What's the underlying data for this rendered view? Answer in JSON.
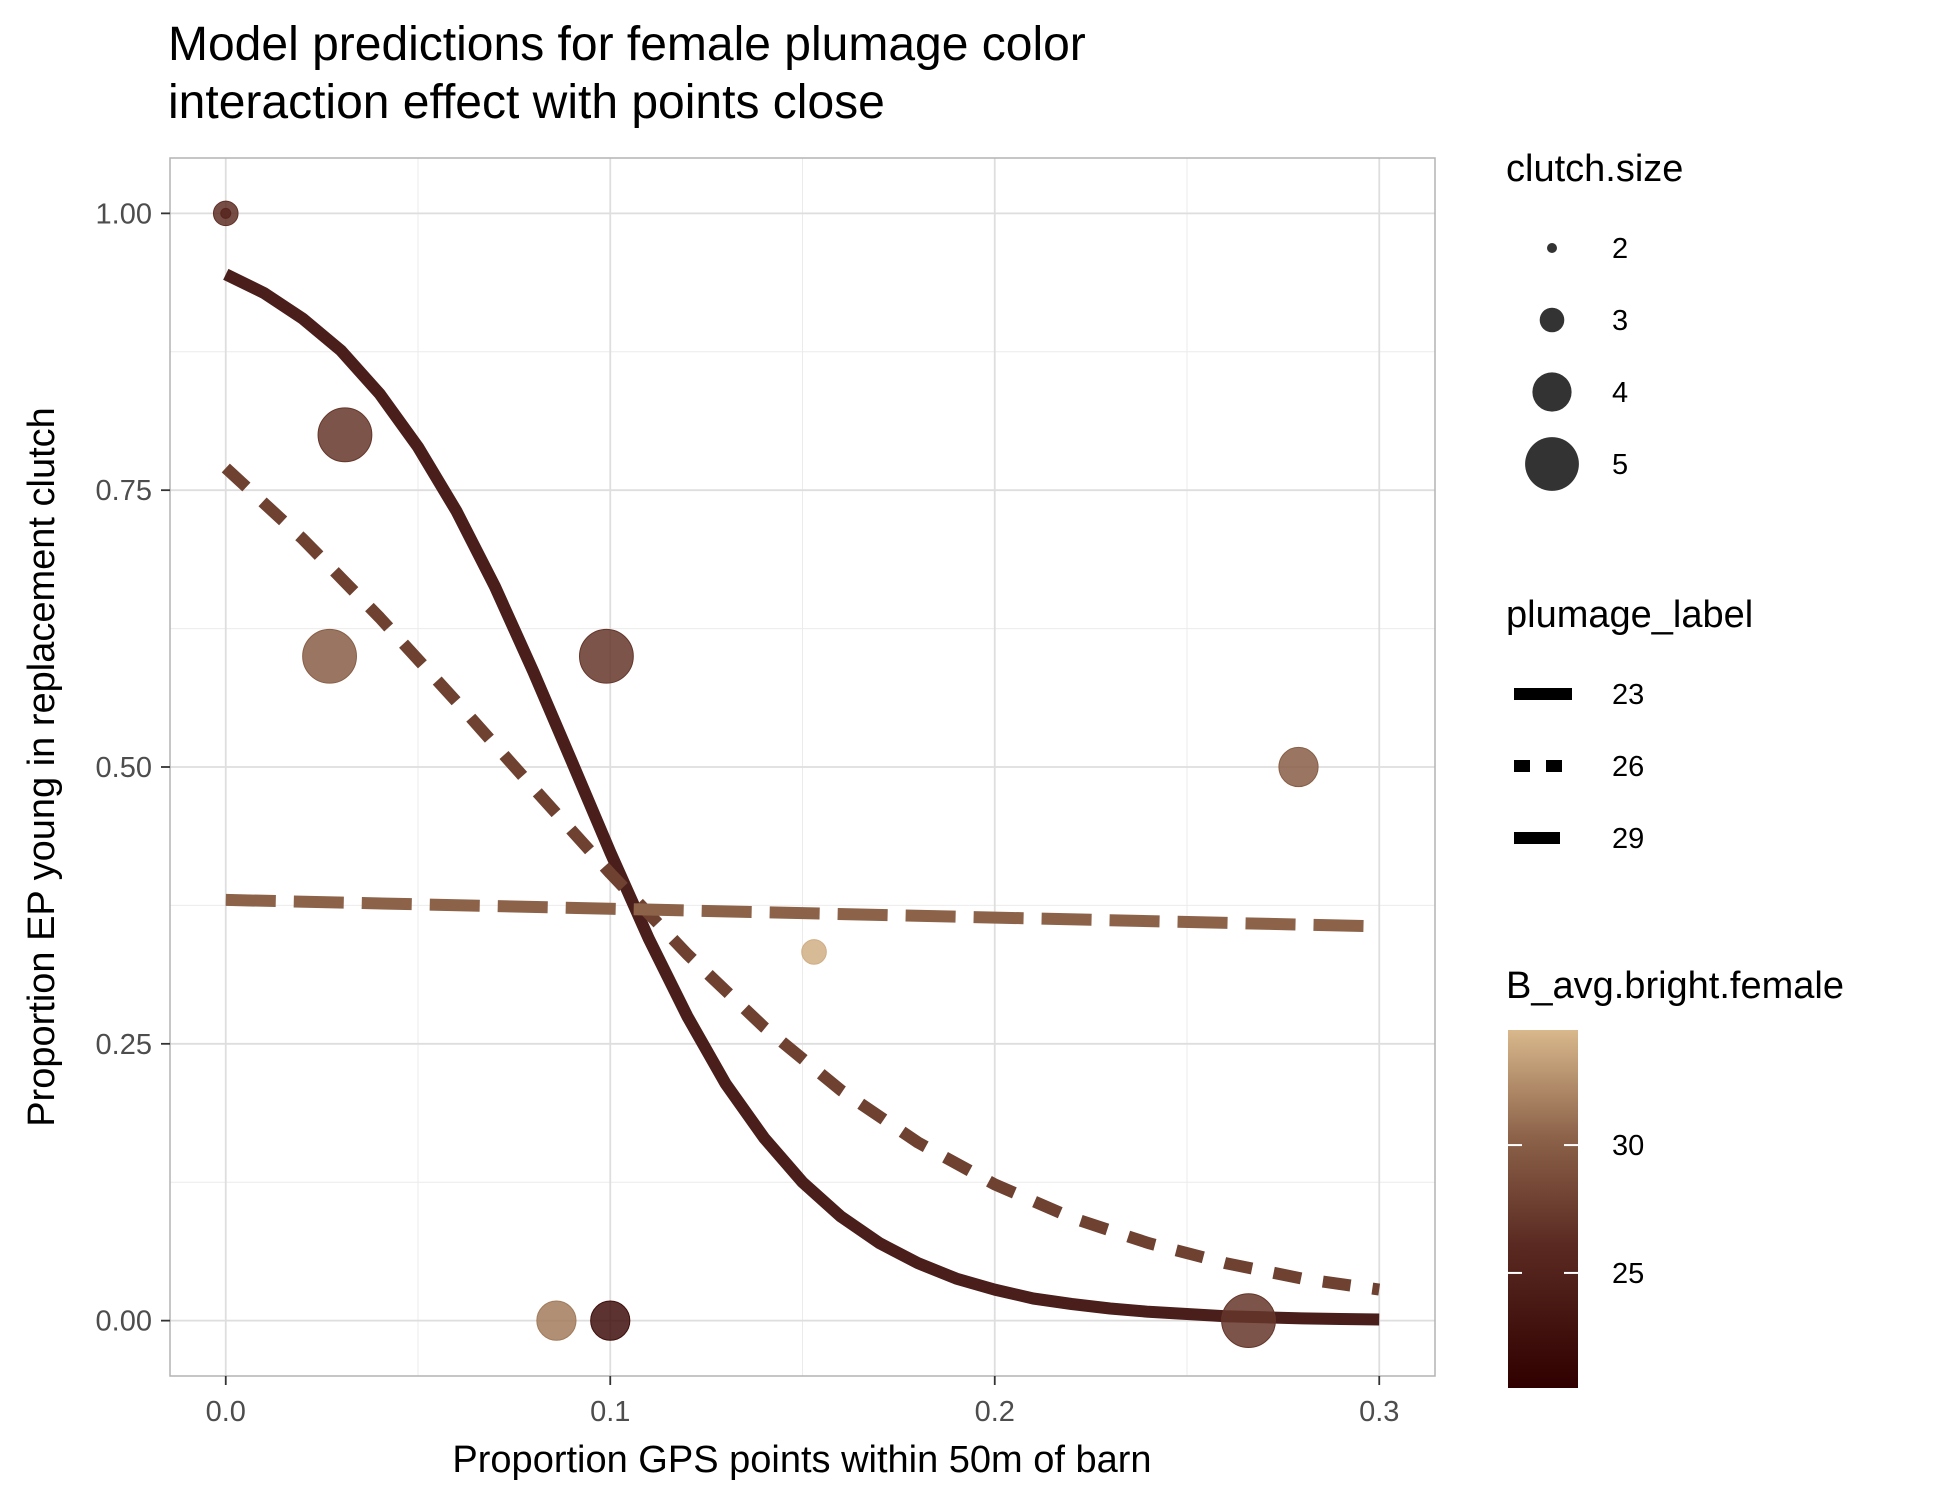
{
  "chart_data": {
    "type": "scatter",
    "title": "Model predictions for female plumage color",
    "subtitle": "interaction effect with points close",
    "xlabel": "Proportion GPS points within 50m of barn",
    "ylabel": "Proportion EP young in replacement clutch",
    "xlim": [
      -0.0145,
      0.3145
    ],
    "ylim": [
      -0.05,
      1.05
    ],
    "x_ticks": [
      0.0,
      0.1,
      0.2,
      0.3
    ],
    "x_tick_labels": [
      "0.0",
      "0.1",
      "0.2",
      "0.3"
    ],
    "y_ticks": [
      0.0,
      0.25,
      0.5,
      0.75,
      1.0
    ],
    "y_tick_labels": [
      "0.00",
      "0.25",
      "0.50",
      "0.75",
      "1.00"
    ],
    "grid": true,
    "points": [
      {
        "x": 0.0,
        "y": 1.0,
        "clutch_size": 2,
        "brightness": 25.5
      },
      {
        "x": 0.0,
        "y": 1.0,
        "clutch_size": 3,
        "brightness": 26.5
      },
      {
        "x": 0.031,
        "y": 0.8,
        "clutch_size": 5,
        "brightness": 27.0
      },
      {
        "x": 0.027,
        "y": 0.6,
        "clutch_size": 5,
        "brightness": 30.0
      },
      {
        "x": 0.099,
        "y": 0.6,
        "clutch_size": 5,
        "brightness": 27.0
      },
      {
        "x": 0.279,
        "y": 0.5,
        "clutch_size": 4,
        "brightness": 30.0
      },
      {
        "x": 0.153,
        "y": 0.333,
        "clutch_size": 3,
        "brightness": 34.0
      },
      {
        "x": 0.086,
        "y": 0.0,
        "clutch_size": 4,
        "brightness": 31.5
      },
      {
        "x": 0.1,
        "y": 0.0,
        "clutch_size": 4,
        "brightness": 22.5
      },
      {
        "x": 0.266,
        "y": 0.0,
        "clutch_size": 5,
        "brightness": 27.0
      }
    ],
    "series": [
      {
        "name": "23",
        "linetype": "solid",
        "color": "#4a1e1a",
        "x": [
          0.0,
          0.01,
          0.02,
          0.03,
          0.04,
          0.05,
          0.06,
          0.07,
          0.08,
          0.09,
          0.1,
          0.11,
          0.12,
          0.13,
          0.14,
          0.15,
          0.16,
          0.17,
          0.18,
          0.19,
          0.2,
          0.21,
          0.22,
          0.23,
          0.24,
          0.25,
          0.26,
          0.27,
          0.28,
          0.29,
          0.3
        ],
        "values": [
          0.945,
          0.928,
          0.905,
          0.876,
          0.837,
          0.789,
          0.731,
          0.663,
          0.586,
          0.505,
          0.423,
          0.345,
          0.275,
          0.214,
          0.165,
          0.125,
          0.094,
          0.07,
          0.052,
          0.038,
          0.028,
          0.02,
          0.015,
          0.011,
          0.008,
          0.006,
          0.004,
          0.003,
          0.002,
          0.0015,
          0.001
        ]
      },
      {
        "name": "26",
        "linetype": "dashed",
        "color": "#6e4131",
        "x": [
          0.0,
          0.02,
          0.04,
          0.06,
          0.08,
          0.1,
          0.12,
          0.14,
          0.16,
          0.18,
          0.2,
          0.22,
          0.24,
          0.26,
          0.28,
          0.3
        ],
        "values": [
          0.77,
          0.706,
          0.635,
          0.559,
          0.481,
          0.404,
          0.331,
          0.265,
          0.208,
          0.161,
          0.123,
          0.093,
          0.07,
          0.052,
          0.038,
          0.028
        ]
      },
      {
        "name": "29",
        "linetype": "longdash",
        "color": "#8c6249",
        "x": [
          0.0,
          0.3
        ],
        "values": [
          0.38,
          0.356
        ]
      }
    ],
    "legends": {
      "size": {
        "title": "clutch.size",
        "items": [
          {
            "label": "2",
            "value": 2
          },
          {
            "label": "3",
            "value": 3
          },
          {
            "label": "4",
            "value": 4
          },
          {
            "label": "5",
            "value": 5
          }
        ]
      },
      "linetype": {
        "title": "plumage_label",
        "items": [
          {
            "label": "23",
            "linetype": "solid"
          },
          {
            "label": "26",
            "linetype": "dashed"
          },
          {
            "label": "29",
            "linetype": "longdash"
          }
        ]
      },
      "color": {
        "title": "B_avg.bright.female",
        "min": 20.5,
        "max": 34.5,
        "ticks": [
          25,
          30
        ],
        "tick_labels": [
          "25",
          "30"
        ],
        "low_color": "#300000",
        "high_color": "#d9b88c"
      }
    }
  }
}
